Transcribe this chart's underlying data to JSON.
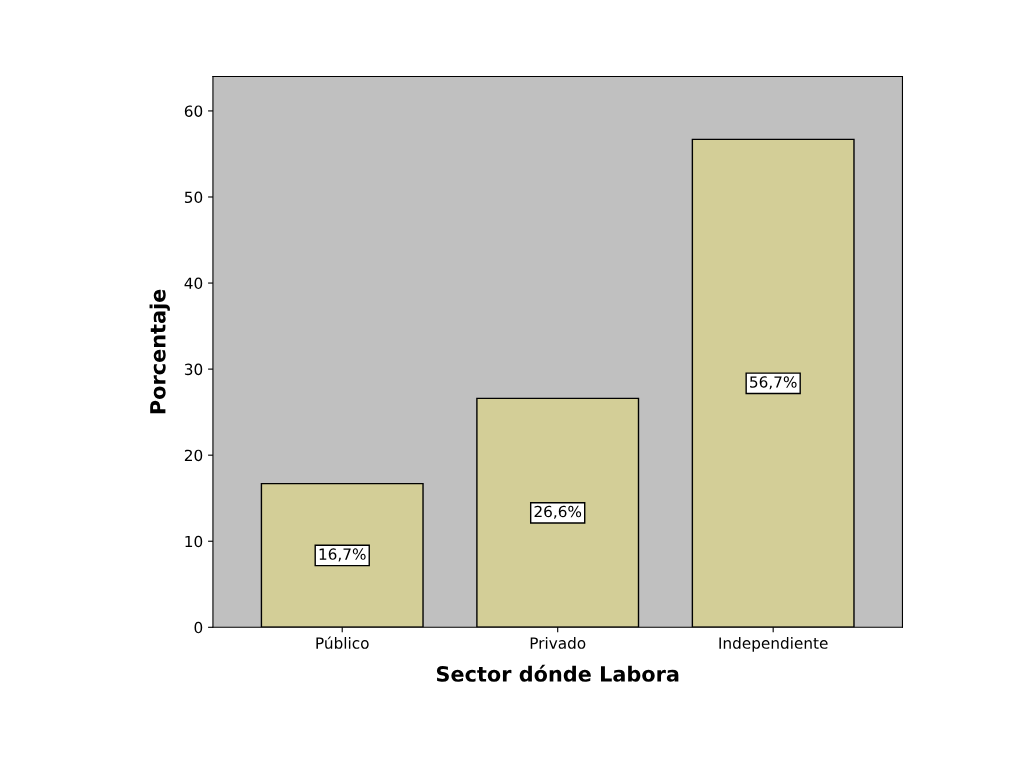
{
  "chart_data": {
    "type": "bar",
    "xlabel": "Sector dónde Labora",
    "ylabel": "Porcentaje",
    "categories": [
      "Público",
      "Privado",
      "Independiente"
    ],
    "values": [
      16.7,
      26.6,
      56.7
    ],
    "value_labels": [
      "16,7%",
      "26,6%",
      "56,7%"
    ],
    "color": "#d3ce97",
    "ylim": [
      0,
      64
    ],
    "yticks": [
      0,
      10,
      20,
      30,
      40,
      50,
      60
    ],
    "grid": false
  }
}
